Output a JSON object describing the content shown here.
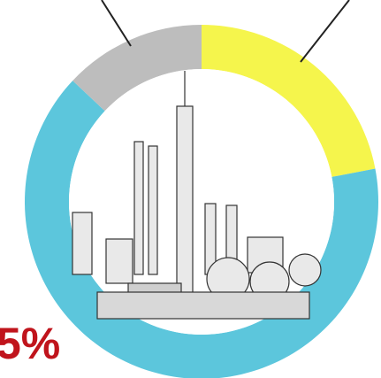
{
  "chart_data": {
    "type": "pie",
    "values": [
      22,
      65,
      13
    ],
    "colors": [
      "#f5f54c",
      "#5cc6dc",
      "#bdbdbd"
    ],
    "annotation": "5%"
  }
}
